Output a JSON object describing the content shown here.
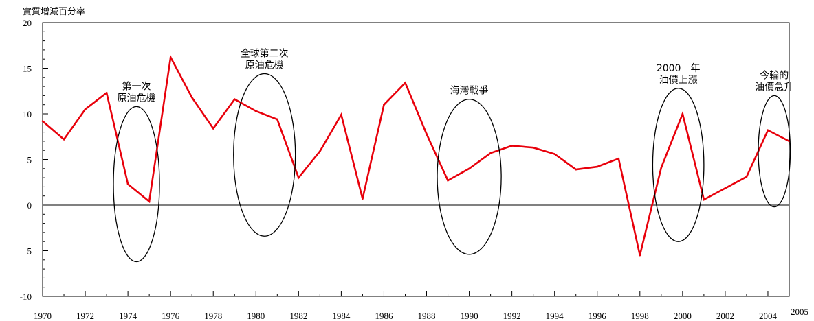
{
  "chart_data": {
    "type": "line",
    "ylabel": "實質增減百分率",
    "xlim": [
      1970,
      2005
    ],
    "ylim": [
      -10,
      20
    ],
    "x_tick_labels": [
      "1970",
      "1972",
      "1974",
      "1976",
      "1978",
      "1980",
      "1982",
      "1984",
      "1986",
      "1988",
      "1990",
      "1992",
      "1994",
      "1996",
      "1998",
      "2000",
      "2002",
      "2004",
      "2005"
    ],
    "y_tick_labels": [
      "20",
      "15",
      "10",
      "5",
      "0",
      "-5",
      "-10"
    ],
    "y_ticks": [
      20,
      15,
      10,
      5,
      0,
      -5,
      -10
    ],
    "zero_line": true,
    "grid": false,
    "series": [
      {
        "color": "#e8000b",
        "points": [
          {
            "x": 1970,
            "y": 9.2
          },
          {
            "x": 1971,
            "y": 7.2
          },
          {
            "x": 1972,
            "y": 10.5
          },
          {
            "x": 1973,
            "y": 12.3
          },
          {
            "x": 1974,
            "y": 2.3
          },
          {
            "x": 1975,
            "y": 0.4
          },
          {
            "x": 1976,
            "y": 16.2
          },
          {
            "x": 1977,
            "y": 11.8
          },
          {
            "x": 1978,
            "y": 8.4
          },
          {
            "x": 1979,
            "y": 11.6
          },
          {
            "x": 1980,
            "y": 10.3
          },
          {
            "x": 1981,
            "y": 9.4
          },
          {
            "x": 1982,
            "y": 3.0
          },
          {
            "x": 1983,
            "y": 5.9
          },
          {
            "x": 1984,
            "y": 9.9
          },
          {
            "x": 1985,
            "y": 0.7
          },
          {
            "x": 1986,
            "y": 11.0
          },
          {
            "x": 1987,
            "y": 13.4
          },
          {
            "x": 1988,
            "y": 7.8
          },
          {
            "x": 1989,
            "y": 2.7
          },
          {
            "x": 1990,
            "y": 4.0
          },
          {
            "x": 1991,
            "y": 5.7
          },
          {
            "x": 1992,
            "y": 6.5
          },
          {
            "x": 1993,
            "y": 6.3
          },
          {
            "x": 1994,
            "y": 5.6
          },
          {
            "x": 1995,
            "y": 3.9
          },
          {
            "x": 1996,
            "y": 4.2
          },
          {
            "x": 1997,
            "y": 5.1
          },
          {
            "x": 1998,
            "y": -5.5
          },
          {
            "x": 1999,
            "y": 4.1
          },
          {
            "x": 2000,
            "y": 10.0
          },
          {
            "x": 2001,
            "y": 0.6
          },
          {
            "x": 2003,
            "y": 3.1
          },
          {
            "x": 2004,
            "y": 8.2
          },
          {
            "x": 2005,
            "y": 7.0
          }
        ]
      }
    ],
    "annotations": [
      {
        "lines": [
          "第一次",
          "原油危機"
        ],
        "cx": 1974.4,
        "cy": 2.3,
        "rx": 1.08,
        "ry": 8.5
      },
      {
        "lines": [
          "全球第二次",
          "原油危機"
        ],
        "cx": 1980.4,
        "cy": 5.5,
        "rx": 1.45,
        "ry": 8.9
      },
      {
        "lines": [
          "海灣戰爭"
        ],
        "cx": 1990.0,
        "cy": 3.1,
        "rx": 1.5,
        "ry": 8.5
      },
      {
        "lines": [
          "2000　年",
          "油價上漲"
        ],
        "cx": 1999.8,
        "cy": 4.4,
        "rx": 1.2,
        "ry": 8.4
      },
      {
        "lines": [
          "今輪的",
          "油價急升"
        ],
        "cx": 2004.3,
        "cy": 5.9,
        "rx": 0.75,
        "ry": 6.1
      }
    ]
  }
}
